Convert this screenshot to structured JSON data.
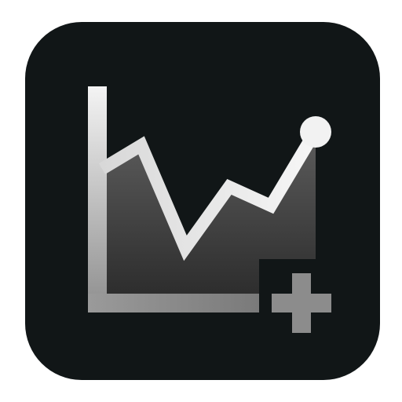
{
  "icon": {
    "name": "add-chart-app-icon",
    "glyph": "area-chart-with-plus-icon",
    "colors": {
      "background": "#111617",
      "tile": "#ffffff",
      "axis_light": "#f2f2f2",
      "axis_dark": "#8a8a8a",
      "area_top": "#5a5a5a",
      "area_bottom": "#2e2e2e",
      "plus": "#8c8c8c"
    }
  }
}
